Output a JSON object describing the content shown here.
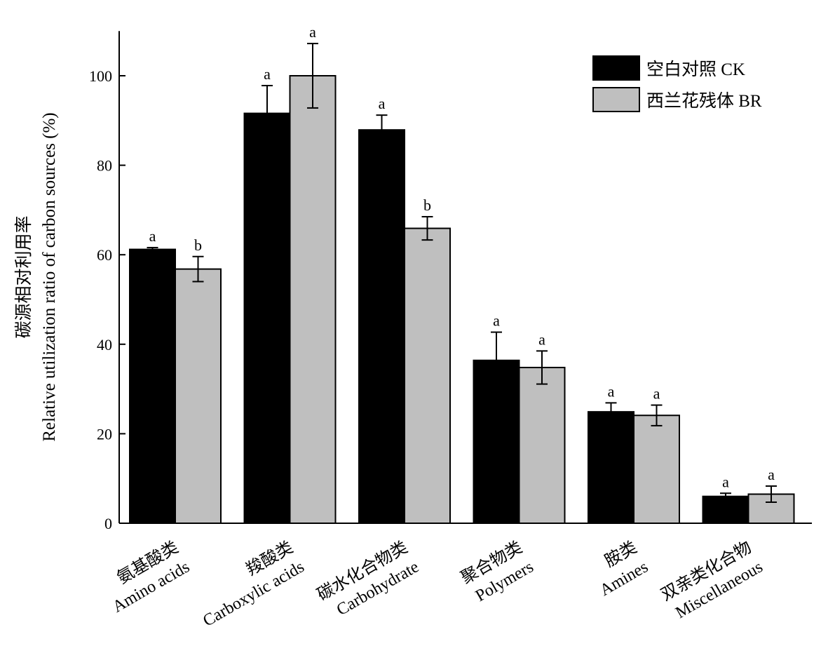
{
  "chart_data": {
    "type": "bar",
    "ylabel_cn": "碳源相对利用率",
    "ylabel_en": "Relative utilization ratio of carbon sources (%)",
    "ylim": [
      0,
      110
    ],
    "yticks": [
      0,
      20,
      40,
      60,
      80,
      100
    ],
    "grid": false,
    "legend_position": "top-right",
    "categories": [
      {
        "cn": "氨基酸类",
        "en": "Amino acids"
      },
      {
        "cn": "羧酸类",
        "en": "Carboxylic acids"
      },
      {
        "cn": "碳水化合物类",
        "en": "Carbohydrate"
      },
      {
        "cn": "聚合物类",
        "en": "Polymers"
      },
      {
        "cn": "胺类",
        "en": "Amines"
      },
      {
        "cn": "双亲类化合物",
        "en": "Miscellaneous"
      }
    ],
    "series": [
      {
        "name": "空白对照 CK",
        "color": "#000000",
        "values": [
          61.2,
          91.6,
          87.9,
          36.4,
          24.9,
          6.0
        ],
        "errors": [
          0.4,
          6.2,
          3.3,
          6.3,
          2.0,
          0.7
        ],
        "letters": [
          "a",
          "a",
          "a",
          "a",
          "a",
          "a"
        ]
      },
      {
        "name": "西兰花残体 BR",
        "color": "#bfbfbf",
        "values": [
          56.8,
          100.0,
          65.9,
          34.8,
          24.1,
          6.5
        ],
        "errors": [
          2.8,
          7.2,
          2.6,
          3.7,
          2.3,
          1.8
        ],
        "letters": [
          "b",
          "a",
          "b",
          "a",
          "a",
          "a"
        ]
      }
    ]
  }
}
